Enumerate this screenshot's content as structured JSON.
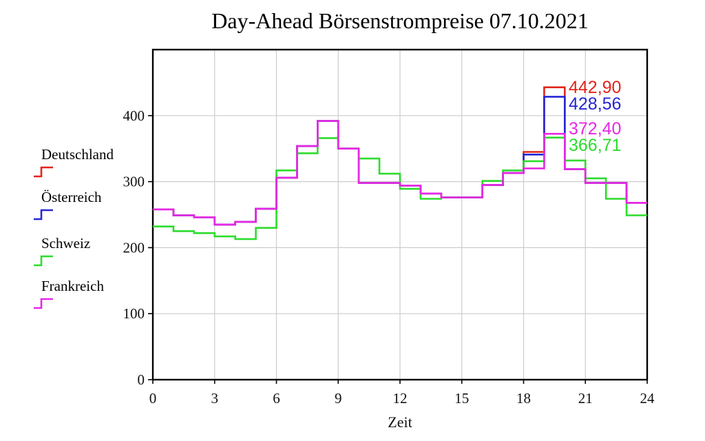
{
  "chart_data": {
    "type": "line",
    "step": true,
    "title": "Day-Ahead Börsenstrompreise 07.10.2021",
    "xlabel": "Zeit",
    "ylabel": "",
    "xlim": [
      0,
      24
    ],
    "ylim": [
      0,
      500
    ],
    "x_ticks": [
      "0",
      "3",
      "6",
      "9",
      "12",
      "15",
      "18",
      "21",
      "24"
    ],
    "y_ticks": [
      "0",
      "100",
      "200",
      "300",
      "400"
    ],
    "grid": true,
    "grid_color": "#cccccc",
    "frame_color": "#000000",
    "legend_position": "left",
    "hours": [
      0,
      1,
      2,
      3,
      4,
      5,
      6,
      7,
      8,
      9,
      10,
      11,
      12,
      13,
      14,
      15,
      16,
      17,
      18,
      19,
      20,
      21,
      22,
      23
    ],
    "series": [
      {
        "name": "Deutschland",
        "color": "#e1251b",
        "values": [
          258,
          249,
          246,
          235,
          239,
          259,
          306,
          354,
          392,
          350,
          298,
          298,
          294,
          282,
          276,
          276,
          295,
          313,
          345,
          442.9,
          319,
          298,
          298,
          268
        ]
      },
      {
        "name": "Österreich",
        "color": "#2526d6",
        "values": [
          258,
          249,
          246,
          235,
          239,
          259,
          306,
          354,
          392,
          350,
          298,
          298,
          294,
          282,
          276,
          276,
          295,
          313,
          341,
          428.56,
          319,
          298,
          298,
          268
        ]
      },
      {
        "name": "Schweiz",
        "color": "#2cdc2c",
        "values": [
          232,
          225,
          222,
          217,
          213,
          230,
          317,
          343,
          366,
          350,
          335,
          312,
          289,
          274,
          276,
          276,
          301,
          317,
          331,
          366.71,
          332,
          305,
          274,
          249
        ]
      },
      {
        "name": "Frankreich",
        "color": "#e628e6",
        "values": [
          258,
          249,
          246,
          235,
          239,
          259,
          306,
          354,
          392,
          350,
          298,
          298,
          294,
          282,
          276,
          276,
          295,
          313,
          320,
          372.4,
          319,
          298,
          298,
          268
        ]
      }
    ],
    "annotations": [
      {
        "label": "442,90",
        "series": 0,
        "value": 442.9
      },
      {
        "label": "428,56",
        "series": 1,
        "value": 428.56
      },
      {
        "label": "372,40",
        "series": 3,
        "value": 372.4
      },
      {
        "label": "366,71",
        "series": 2,
        "value": 366.71
      }
    ]
  }
}
